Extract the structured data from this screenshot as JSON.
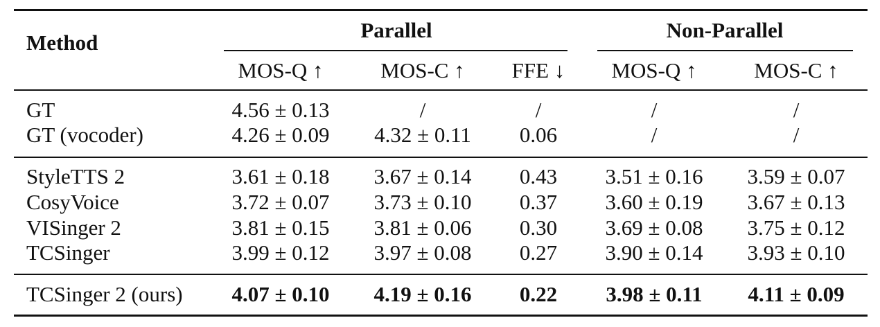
{
  "table": {
    "header": {
      "method": "Method",
      "groups": [
        "Parallel",
        "Non-Parallel"
      ],
      "columns": [
        "MOS-Q ↑",
        "MOS-C ↑",
        "FFE ↓",
        "MOS-Q ↑",
        "MOS-C ↑"
      ]
    },
    "rows": [
      {
        "method": "GT",
        "values": [
          "4.56 ± 0.13",
          "/",
          "/",
          "/",
          "/"
        ]
      },
      {
        "method": "GT (vocoder)",
        "values": [
          "4.26 ± 0.09",
          "4.32 ± 0.11",
          "0.06",
          "/",
          "/"
        ]
      },
      {
        "method": "StyleTTS 2",
        "values": [
          "3.61 ± 0.18",
          "3.67 ± 0.14",
          "0.43",
          "3.51 ± 0.16",
          "3.59 ± 0.07"
        ]
      },
      {
        "method": "CosyVoice",
        "values": [
          "3.72 ± 0.07",
          "3.73 ± 0.10",
          "0.37",
          "3.60 ± 0.19",
          "3.67 ± 0.13"
        ]
      },
      {
        "method": "VISinger 2",
        "values": [
          "3.81 ± 0.15",
          "3.81 ± 0.06",
          "0.30",
          "3.69 ± 0.08",
          "3.75 ± 0.12"
        ]
      },
      {
        "method": "TCSinger",
        "values": [
          "3.99 ± 0.12",
          "3.97 ± 0.08",
          "0.27",
          "3.90 ± 0.14",
          "3.93 ± 0.10"
        ]
      },
      {
        "method": "TCSinger 2 (ours)",
        "values": [
          "4.07 ± 0.10",
          "4.19 ± 0.16",
          "0.22",
          "3.98 ± 0.11",
          "4.11 ± 0.09"
        ],
        "bold_values": true
      }
    ]
  }
}
